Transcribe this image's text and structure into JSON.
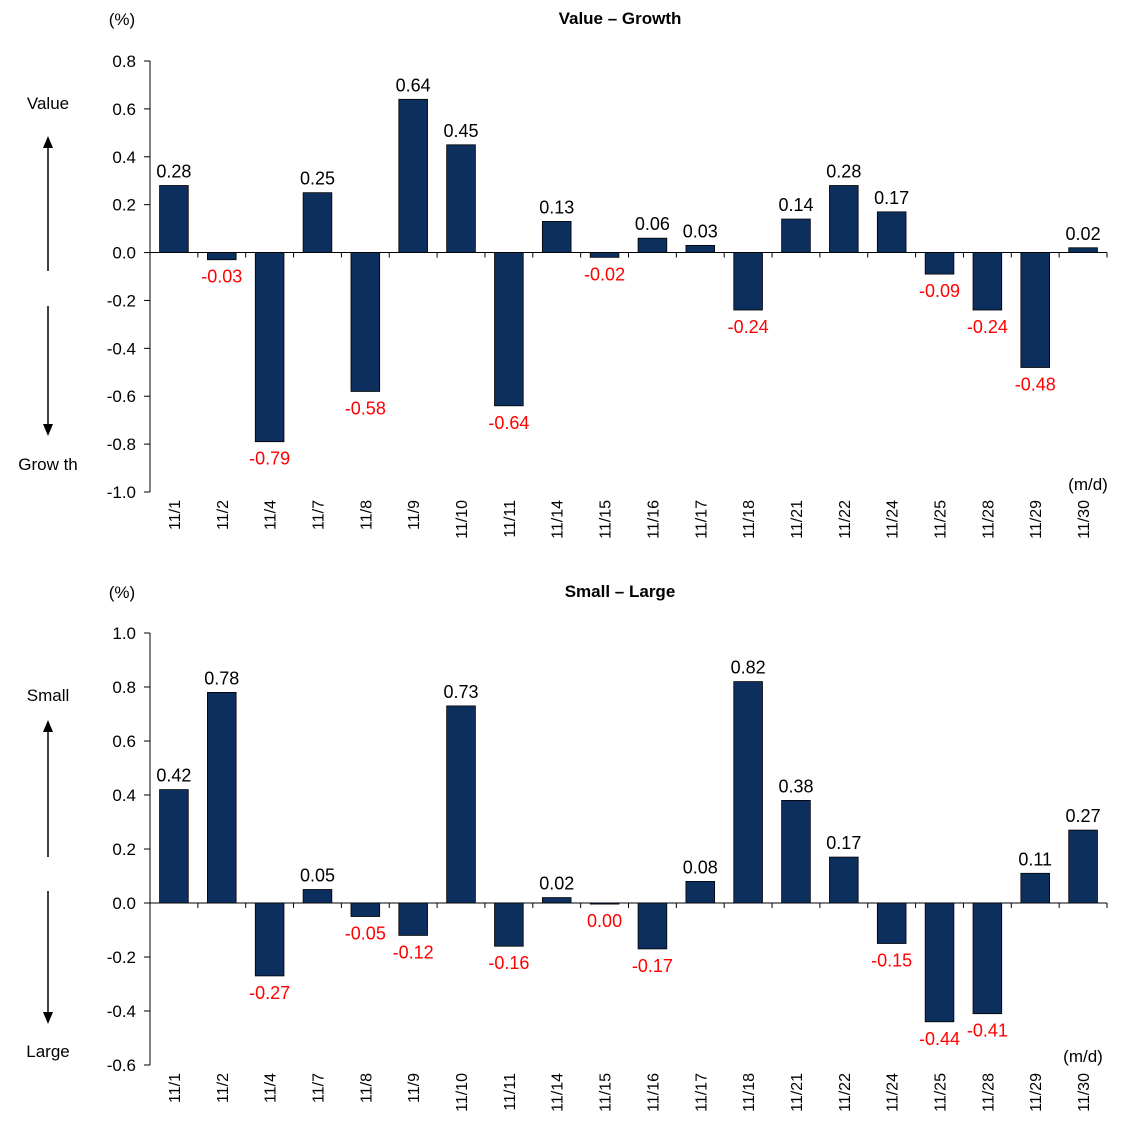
{
  "chart_data": [
    {
      "type": "bar",
      "title": "Value – Growth",
      "unit_label": "(%)",
      "x_unit_label": "(m/d)",
      "up_label": "Value",
      "down_label": "Grow th",
      "categories": [
        "11/1",
        "11/2",
        "11/4",
        "11/7",
        "11/8",
        "11/9",
        "11/10",
        "11/11",
        "11/14",
        "11/15",
        "11/16",
        "11/17",
        "11/18",
        "11/21",
        "11/22",
        "11/24",
        "11/25",
        "11/28",
        "11/29",
        "11/30"
      ],
      "values": [
        0.28,
        -0.03,
        -0.79,
        0.25,
        -0.58,
        0.64,
        0.45,
        -0.64,
        0.13,
        -0.02,
        0.06,
        0.03,
        -0.24,
        0.14,
        0.28,
        0.17,
        -0.09,
        -0.24,
        -0.48,
        0.02
      ],
      "data_labels": [
        "0.28",
        "-0.03",
        "-0.79",
        "0.25",
        "-0.58",
        "0.64",
        "0.45",
        "-0.64",
        "0.13",
        "-0.02",
        "0.06",
        "0.03",
        "-0.24",
        "0.14",
        "0.28",
        "0.17",
        "-0.09",
        "-0.24",
        "-0.48",
        "0.02"
      ],
      "yticks": [
        "0.8",
        "0.6",
        "0.4",
        "0.2",
        "0.0",
        "-0.2",
        "-0.4",
        "-0.6",
        "-0.8",
        "-1.0"
      ],
      "ylim": [
        -1.0,
        0.8
      ],
      "bar_color": "#0d2f5e",
      "positive_label_color": "#000000",
      "negative_label_color": "#ff0000",
      "grid": false
    },
    {
      "type": "bar",
      "title": "Small – Large",
      "unit_label": "(%)",
      "x_unit_label": "(m/d)",
      "up_label": "Small",
      "down_label": "Large",
      "categories": [
        "11/1",
        "11/2",
        "11/4",
        "11/7",
        "11/8",
        "11/9",
        "11/10",
        "11/11",
        "11/14",
        "11/15",
        "11/16",
        "11/17",
        "11/18",
        "11/21",
        "11/22",
        "11/24",
        "11/25",
        "11/28",
        "11/29",
        "11/30"
      ],
      "values": [
        0.42,
        0.78,
        -0.27,
        0.05,
        -0.05,
        -0.12,
        0.73,
        -0.16,
        0.02,
        -0.004,
        -0.17,
        0.08,
        0.82,
        0.38,
        0.17,
        -0.15,
        -0.44,
        -0.41,
        0.11,
        0.27
      ],
      "data_labels": [
        "0.42",
        "0.78",
        "-0.27",
        "0.05",
        "-0.05",
        "-0.12",
        "0.73",
        "-0.16",
        "0.02",
        "0.00",
        "-0.17",
        "0.08",
        "0.82",
        "0.38",
        "0.17",
        "-0.15",
        "-0.44",
        "-0.41",
        "0.11",
        "0.27"
      ],
      "yticks": [
        "1.0",
        "0.8",
        "0.6",
        "0.4",
        "0.2",
        "0.0",
        "-0.2",
        "-0.4",
        "-0.6"
      ],
      "ylim": [
        -0.6,
        1.0
      ],
      "bar_color": "#0d2f5e",
      "positive_label_color": "#000000",
      "negative_label_color": "#ff0000",
      "grid": false
    }
  ]
}
